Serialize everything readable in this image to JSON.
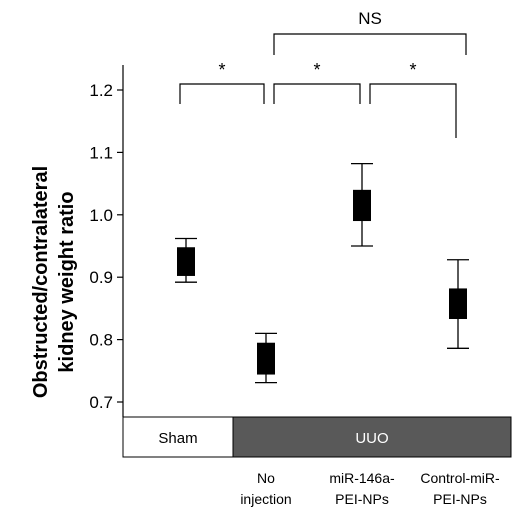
{
  "chart_data": {
    "type": "box",
    "ylabel_line1": "Obstructed/contralateral",
    "ylabel_line2": "kidney weight ratio",
    "ylim": [
      0.66,
      1.24
    ],
    "yticks": [
      0.7,
      0.8,
      0.9,
      1.0,
      1.1,
      1.2
    ],
    "ytick_labels": [
      "0.7",
      "0.8",
      "0.9",
      "1.0",
      "1.1",
      "1.2"
    ],
    "groups": [
      {
        "name": "Sham",
        "whisker_low": 0.892,
        "q1": 0.902,
        "q3": 0.948,
        "whisker_high": 0.962
      },
      {
        "name": "No injection",
        "whisker_low": 0.731,
        "q1": 0.744,
        "q3": 0.795,
        "whisker_high": 0.81
      },
      {
        "name": "miR-146a-PEI-NPs",
        "whisker_low": 0.95,
        "q1": 0.99,
        "q3": 1.04,
        "whisker_high": 1.082
      },
      {
        "name": "Control-miR-PEI-NPs",
        "whisker_low": 0.786,
        "q1": 0.833,
        "q3": 0.882,
        "whisker_high": 0.928
      }
    ],
    "x_labels": [
      {
        "line1": "No",
        "line2": "injection"
      },
      {
        "line1": "miR-146a-",
        "line2": "PEI-NPs"
      },
      {
        "line1": "Control-miR-",
        "line2": "PEI-NPs"
      }
    ],
    "bar_labels": {
      "sham": "Sham",
      "uuo": "UUO"
    },
    "significance": [
      {
        "from": 0,
        "to": 1,
        "label": "*"
      },
      {
        "from": 1,
        "to": 2,
        "label": "*"
      },
      {
        "from": 2,
        "to": 3,
        "label": "*"
      },
      {
        "from": 1,
        "to": 3,
        "label": "NS"
      }
    ],
    "colors": {
      "box": "#000000",
      "uuo_bar": "#595959",
      "sham_bar": "#ffffff",
      "text": "#000000"
    }
  }
}
